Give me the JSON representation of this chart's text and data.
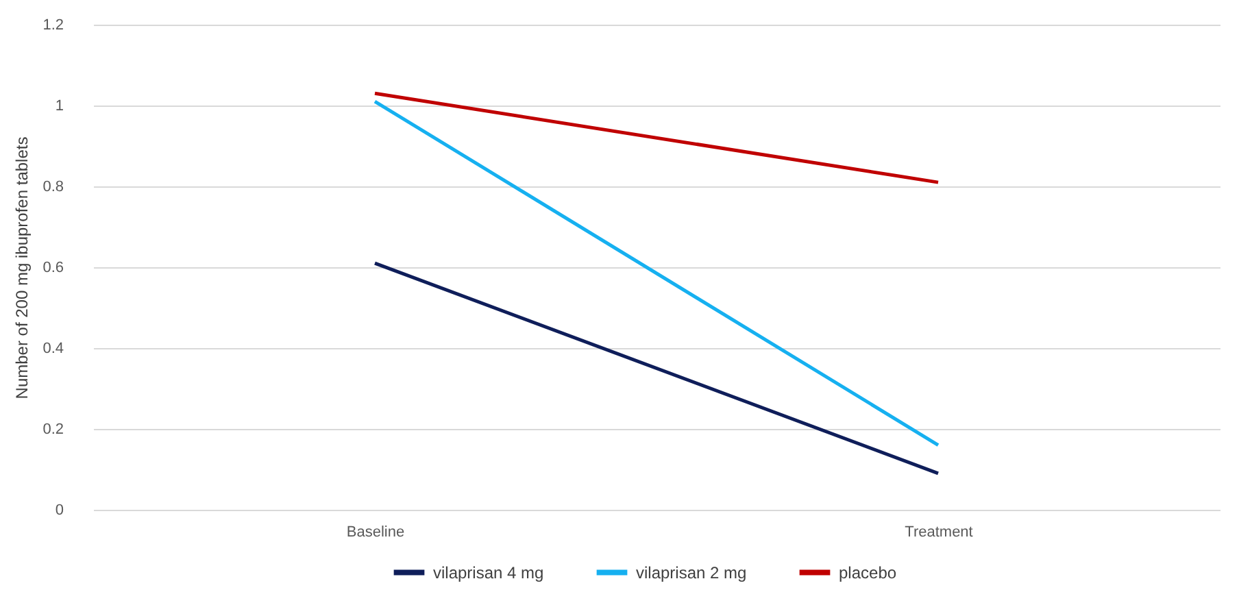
{
  "chart_data": {
    "type": "line",
    "ylabel": "Number of 200 mg ibuprofen tablets",
    "categories": [
      "Baseline",
      "Treatment"
    ],
    "series": [
      {
        "name": "vilaprisan 4 mg",
        "color": "#0f1e5a",
        "values": [
          0.61,
          0.09
        ]
      },
      {
        "name": "vilaprisan 2 mg",
        "color": "#16b0f0",
        "values": [
          1.01,
          0.16
        ]
      },
      {
        "name": "placebo",
        "color": "#c00000",
        "values": [
          1.03,
          0.81
        ]
      }
    ],
    "ylim": [
      0,
      1.2
    ],
    "yticks": [
      0,
      0.2,
      0.4,
      0.6,
      0.8,
      1,
      1.2
    ],
    "grid": "y",
    "legend": "bottom",
    "marker": "none",
    "line_style": "solid"
  }
}
